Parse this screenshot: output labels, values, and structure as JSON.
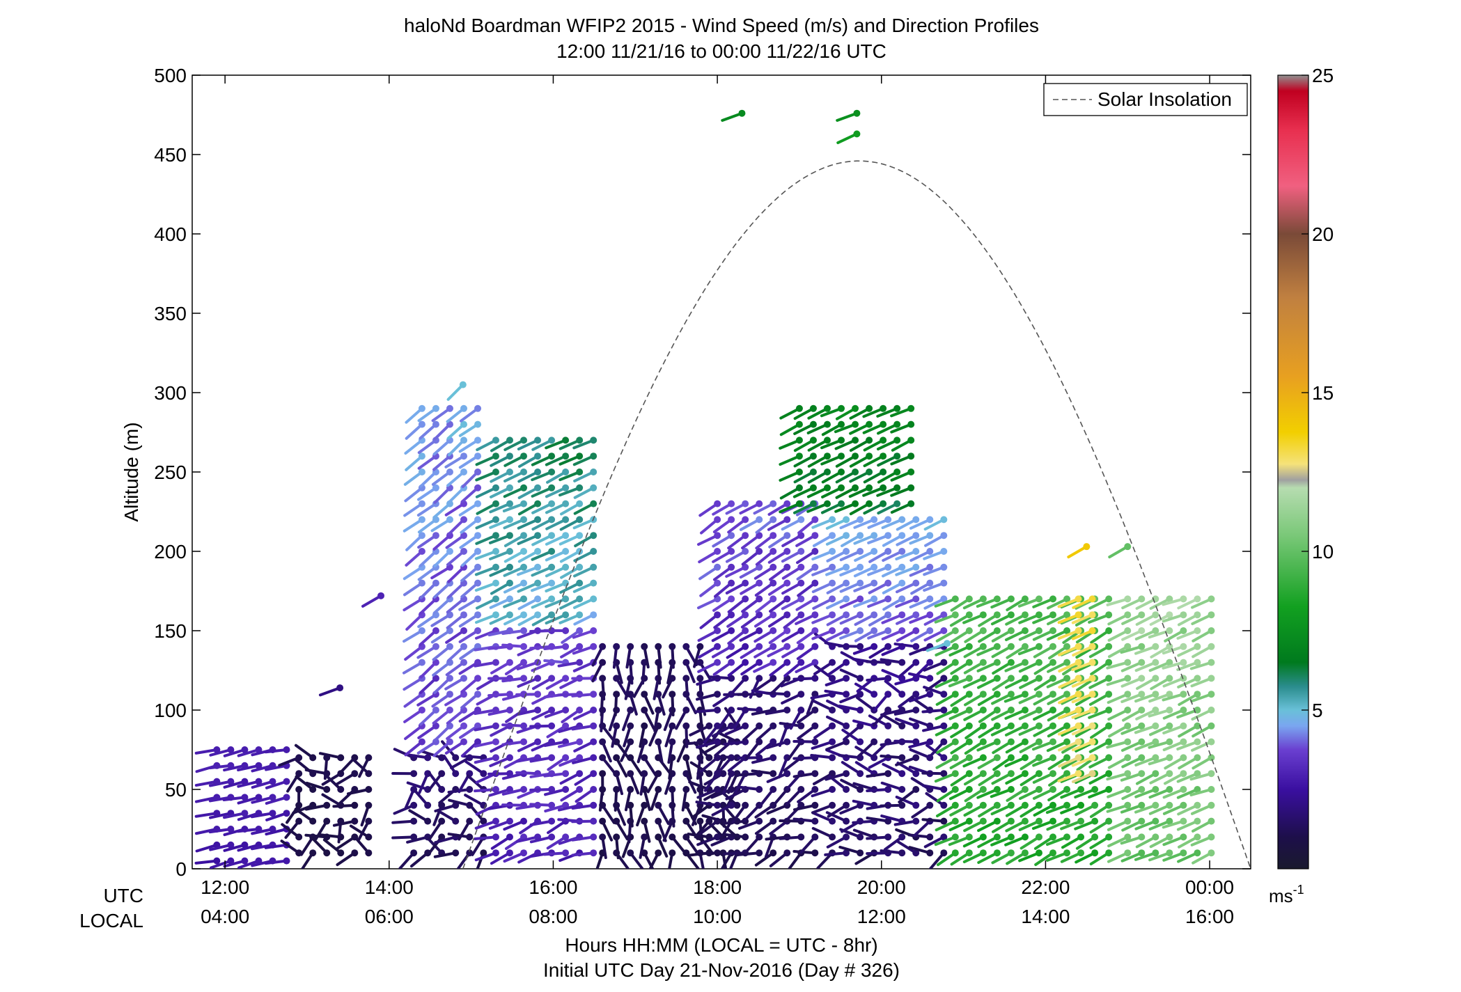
{
  "chart_data": {
    "type": "scatter",
    "subtype": "wind-barb-profile",
    "title": "haloNd Boardman WFIP2 2015 - Wind Speed (m/s) and Direction Profiles",
    "subtitle": "12:00 11/21/16 to 00:00 11/22/16  UTC",
    "ylabel": "Altitude (m)",
    "ylim": [
      0,
      500
    ],
    "yticks": [
      "0",
      "50",
      "100",
      "150",
      "200",
      "250",
      "300",
      "350",
      "400",
      "450",
      "500"
    ],
    "xlim_hours": [
      11.6,
      24.5
    ],
    "row_labels": {
      "utc": "UTC",
      "local": "LOCAL"
    },
    "utc_ticks": [
      "12:00",
      "14:00",
      "16:00",
      "18:00",
      "20:00",
      "22:00",
      "00:00"
    ],
    "local_ticks": [
      "04:00",
      "06:00",
      "08:00",
      "10:00",
      "12:00",
      "14:00",
      "16:00"
    ],
    "xlabel": "Hours HH:MM  (LOCAL = UTC - 8hr)",
    "xlabel2": "Initial UTC Day 21-Nov-2016 (Day # 326)",
    "legend": {
      "label": "Solar Insolation",
      "position": "top-right",
      "style": "dashed"
    },
    "colorbar": {
      "range": [
        0,
        25
      ],
      "ticks": [
        "5",
        "10",
        "15",
        "20",
        "25"
      ],
      "unit": "ms",
      "unit_exp": "-1"
    },
    "solar_insolation": {
      "start_hour": 14.9,
      "end_hour": 24.5,
      "peak_hour": 19.73,
      "peak_altitude": 446
    },
    "segments": [
      {
        "t0": 11.9,
        "t1": 12.8,
        "a0": 5,
        "a1": 75,
        "spd": [
          2.5,
          3.0
        ],
        "dir": [
          250,
          265
        ]
      },
      {
        "t0": 12.9,
        "t1": 13.9,
        "a0": 10,
        "a1": 75,
        "spd": [
          0.8,
          1.2
        ],
        "dir": [
          180,
          320
        ]
      },
      {
        "t0": 14.3,
        "t1": 15.2,
        "a0": 10,
        "a1": 70,
        "spd": [
          1.0,
          2.0
        ],
        "dir": [
          200,
          330
        ]
      },
      {
        "t0": 14.4,
        "t1": 15.2,
        "a0": 80,
        "a1": 290,
        "spd": [
          3.0,
          5.0
        ],
        "dir": [
          225,
          240
        ]
      },
      {
        "t0": 15.3,
        "t1": 16.5,
        "a0": 10,
        "a1": 150,
        "spd": [
          2.5,
          4.0
        ],
        "dir": [
          235,
          275
        ]
      },
      {
        "t0": 15.3,
        "t1": 16.5,
        "a0": 160,
        "a1": 270,
        "spd": [
          4.5,
          6.5
        ],
        "dir": [
          240,
          250
        ]
      },
      {
        "t0": 16.6,
        "t1": 17.8,
        "a0": 10,
        "a1": 140,
        "spd": [
          0.8,
          1.5
        ],
        "dir": [
          140,
          210
        ]
      },
      {
        "t0": 17.9,
        "t1": 18.3,
        "a0": 10,
        "a1": 90,
        "spd": [
          0.8,
          1.5
        ],
        "dir": [
          170,
          330
        ]
      },
      {
        "t0": 18.0,
        "t1": 19.3,
        "a0": 10,
        "a1": 120,
        "spd": [
          1.0,
          2.0
        ],
        "dir": [
          200,
          280
        ]
      },
      {
        "t0": 18.0,
        "t1": 19.3,
        "a0": 130,
        "a1": 230,
        "spd": [
          2.5,
          4.5
        ],
        "dir": [
          230,
          245
        ]
      },
      {
        "t0": 19.4,
        "t1": 20.8,
        "a0": 10,
        "a1": 140,
        "spd": [
          1.0,
          2.5
        ],
        "dir": [
          220,
          310
        ]
      },
      {
        "t0": 19.4,
        "t1": 20.8,
        "a0": 150,
        "a1": 220,
        "spd": [
          3.5,
          5.0
        ],
        "dir": [
          240,
          250
        ]
      },
      {
        "t0": 19.0,
        "t1": 20.5,
        "a0": 230,
        "a1": 295,
        "spd": [
          6.0,
          7.5
        ],
        "dir": [
          240,
          250
        ]
      },
      {
        "t0": 20.9,
        "t1": 22.9,
        "a0": 10,
        "a1": 170,
        "spd": [
          8.0,
          10.0
        ],
        "dir": [
          235,
          250
        ]
      },
      {
        "t0": 23.0,
        "t1": 24.1,
        "a0": 10,
        "a1": 170,
        "spd": [
          9.5,
          12.0
        ],
        "dir": [
          240,
          255
        ]
      },
      {
        "t0": 22.4,
        "t1": 22.6,
        "a0": 60,
        "a1": 170,
        "spd": [
          12.5,
          13.5
        ],
        "dir": [
          245,
          250
        ]
      }
    ],
    "isolated_barbs": [
      {
        "t": 13.9,
        "a": 172,
        "spd": 3.0,
        "dir": 240
      },
      {
        "t": 13.4,
        "a": 114,
        "spd": 2.0,
        "dir": 250
      },
      {
        "t": 18.3,
        "a": 476,
        "spd": 7.2,
        "dir": 250
      },
      {
        "t": 19.7,
        "a": 476,
        "spd": 7.5,
        "dir": 250
      },
      {
        "t": 19.7,
        "a": 463,
        "spd": 8.0,
        "dir": 245
      },
      {
        "t": 22.5,
        "a": 203,
        "spd": 14.0,
        "dir": 240
      },
      {
        "t": 23.0,
        "a": 203,
        "spd": 10.0,
        "dir": 240
      },
      {
        "t": 20.8,
        "a": 142,
        "spd": 5.0,
        "dir": 250
      },
      {
        "t": 14.9,
        "a": 305,
        "spd": 5.0,
        "dir": 225
      }
    ]
  }
}
